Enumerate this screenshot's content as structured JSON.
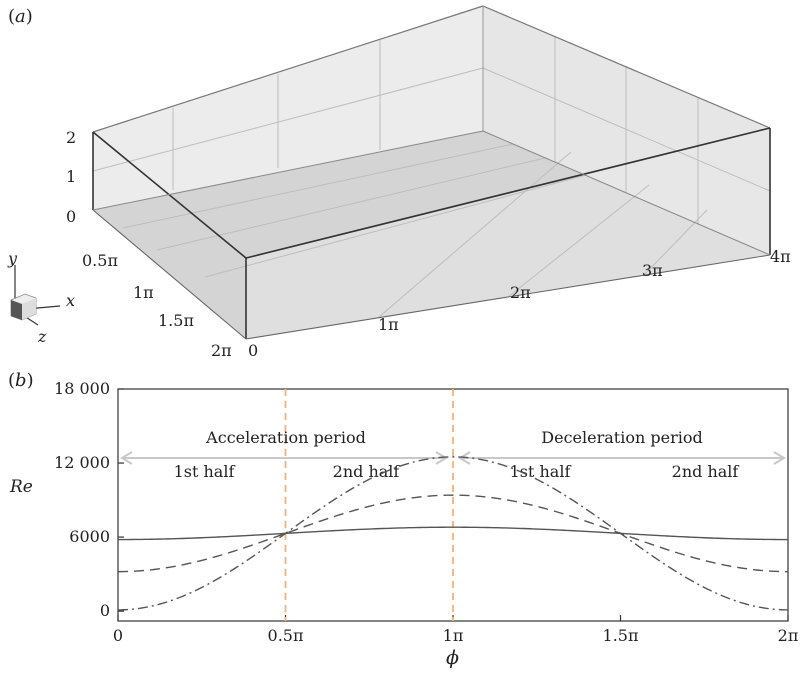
{
  "panel_a": {
    "label_open": "(",
    "label_letter": "a",
    "label_close": ")",
    "y_ticks": [
      "2",
      "1",
      "0"
    ],
    "z_ticks": [
      "0.5π",
      "1π",
      "1.5π",
      "2π"
    ],
    "x_ticks": [
      "0",
      "1π",
      "2π",
      "3π",
      "4π"
    ],
    "axes_triad": {
      "x": "x",
      "y": "y",
      "z": "z"
    }
  },
  "panel_b": {
    "label_open": "(",
    "label_letter": "b",
    "label_close": ")",
    "annotations": {
      "acceleration": "Acceleration period",
      "deceleration": "Deceleration period",
      "half_1a": "1st half",
      "half_2a": "2nd half",
      "half_1b": "1st half",
      "half_2b": "2nd half"
    }
  },
  "chart_data": {
    "type": "line",
    "xlabel": "ϕ",
    "ylabel": "Re",
    "x_ticks": [
      "0",
      "0.5π",
      "1π",
      "1.5π",
      "2π"
    ],
    "y_ticks": [
      "0",
      "6000",
      "12 000",
      "18 000"
    ],
    "xlim": [
      0,
      6.2832
    ],
    "ylim": [
      -800,
      18000
    ],
    "grid": false,
    "vlines": [
      1.5708,
      3.1416
    ],
    "vline_color": "#f5b27a",
    "series": [
      {
        "style": "solid",
        "color": "#555555",
        "mean": 6300,
        "amplitude": 500
      },
      {
        "style": "dashed",
        "color": "#555555",
        "mean": 6300,
        "amplitude": 3100
      },
      {
        "style": "dashdot",
        "color": "#555555",
        "mean": 6300,
        "amplitude": 6200
      }
    ]
  }
}
